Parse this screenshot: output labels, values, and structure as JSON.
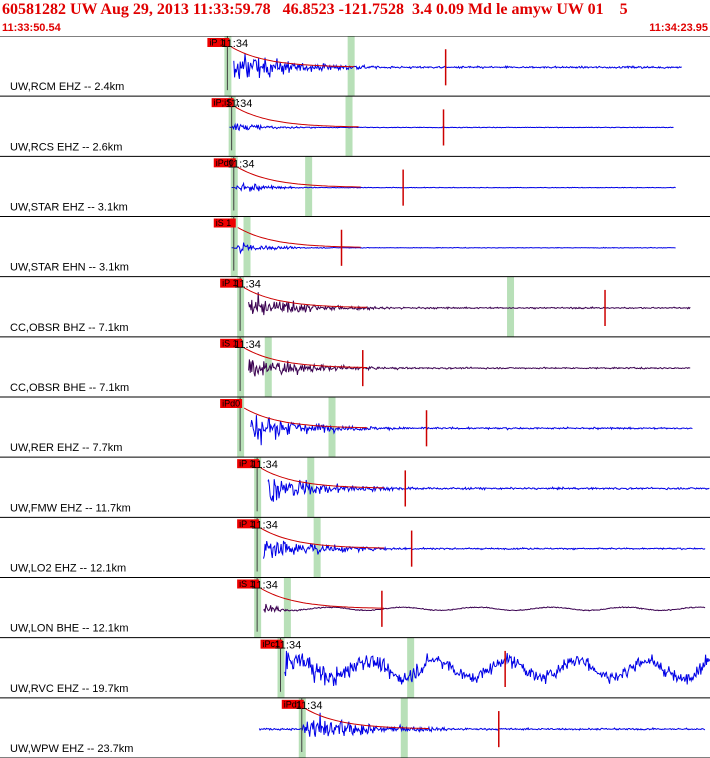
{
  "header": {
    "title": "60581282 UW Aug 29, 2013 11:33:59.78   46.8523 -121.7528  3.4 0.09 Md le amyw UW 01    5",
    "start_time": "11:33:50.54",
    "end_time": "11:34:23.95"
  },
  "colors": {
    "header_text": "#e00000",
    "blue_trace": "#0000e6",
    "purple_trace": "#3a0050",
    "pick_flag": "#ee0000",
    "coda_fit": "#cc0000",
    "window_shade": "#b8e0b8",
    "pick_line": "#404040",
    "separator": "#000000"
  },
  "chart_data": {
    "type": "seismogram",
    "time_window": [
      "11:33:50.54",
      "11:34:23.95"
    ],
    "channels": [
      {
        "label": "UW,RCM EHZ -- 2.4km",
        "color": "blue",
        "pick": "iP 1",
        "clock": "11:34",
        "trace_start": 11.0,
        "trace_end": 32.1,
        "p": 10.7,
        "s": 16.5,
        "amp": "high"
      },
      {
        "label": "UW,RCS EHZ -- 2.6km",
        "color": "blue",
        "pick": "iP;iS 1",
        "clock": "11:34",
        "trace_start": 10.8,
        "trace_end": 31.7,
        "p": 10.9,
        "s": 16.4,
        "amp": "low"
      },
      {
        "label": "UW,STAR EHZ -- 3.1km",
        "color": "blue",
        "pick": "iPd0",
        "clock": "11:34",
        "trace_start": 10.9,
        "trace_end": 31.8,
        "p": 11.0,
        "s": 14.5,
        "amp": "low"
      },
      {
        "label": "UW,STAR EHN -- 3.1km",
        "color": "blue",
        "pick": "iS 1",
        "clock": "",
        "trace_start": 10.9,
        "trace_end": 31.8,
        "p": 11.0,
        "s": 11.6,
        "amp": "low"
      },
      {
        "label": "CC,OBSR BHZ -- 7.1km",
        "color": "purple",
        "pick": "iP 1",
        "clock": "11:34",
        "trace_start": 11.7,
        "trace_end": 32.5,
        "p": 11.3,
        "s": 24.0,
        "amp": "medium"
      },
      {
        "label": "CC,OBSR BHE -- 7.1km",
        "color": "purple",
        "pick": "iS 1",
        "clock": "11:34",
        "trace_start": 11.7,
        "trace_end": 32.5,
        "p": 11.3,
        "s": 12.6,
        "amp": "medium"
      },
      {
        "label": "UW,RER EHZ -- 7.7km",
        "color": "blue",
        "pick": "iPd0",
        "clock": "",
        "trace_start": 11.8,
        "trace_end": 32.6,
        "p": 11.3,
        "s": 15.6,
        "amp": "high"
      },
      {
        "label": "UW,FMW EHZ -- 11.7km",
        "color": "blue",
        "pick": "iP 1",
        "clock": "11:34",
        "trace_start": 12.6,
        "trace_end": 33.4,
        "p": 12.1,
        "s": 14.6,
        "amp": "high"
      },
      {
        "label": "UW,LO2 EHZ -- 12.1km",
        "color": "blue",
        "pick": "iP 1",
        "clock": "11:34",
        "trace_start": 12.4,
        "trace_end": 33.2,
        "p": 12.1,
        "s": 14.9,
        "amp": "medium"
      },
      {
        "label": "UW,LON BHE -- 12.1km",
        "color": "purple",
        "pick": "iS 1",
        "clock": "11:34",
        "trace_start": 12.4,
        "trace_end": 33.2,
        "p": 12.1,
        "s": 13.5,
        "amp": "low"
      },
      {
        "label": "UW,RVC EHZ -- 19.7km",
        "color": "blue",
        "pick": "iPc1",
        "clock": "11:34",
        "trace_start": 13.4,
        "trace_end": 34.8,
        "p": 13.2,
        "s": 19.3,
        "amp": "noisy"
      },
      {
        "label": "UW,WPW EHZ -- 23.7km",
        "color": "blue",
        "pick": "iPd1",
        "clock": "11:34",
        "trace_start": 12.2,
        "trace_end": 33.2,
        "p": 14.2,
        "s": 19.0,
        "amp": "high"
      }
    ]
  }
}
